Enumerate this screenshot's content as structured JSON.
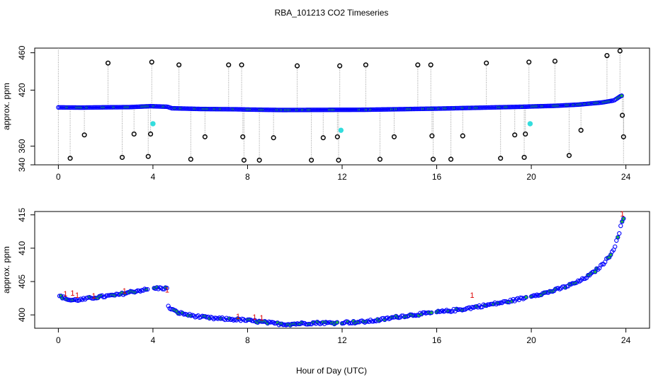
{
  "title": "RBA_101213  CO2 Timeseries",
  "xlabel": "Hour of Day (UTC)",
  "colors": {
    "point_outline": "#0000ff",
    "point_fill_green": "#22b14c",
    "outlier": "#000000",
    "flag_cyan": "#33dddd",
    "flag_red": "#dd0000",
    "drop_line": "#999999"
  },
  "chart_data": [
    {
      "type": "scatter",
      "name": "top-panel",
      "ylabel": "approx. ppm",
      "xlim": [
        -1.0,
        25.0
      ],
      "ylim": [
        340,
        465
      ],
      "xticks": [
        0,
        4,
        8,
        12,
        16,
        20,
        24
      ],
      "yticks": [
        340,
        360,
        420,
        460
      ],
      "ytick_labels": [
        "340",
        "360",
        "420",
        "460"
      ],
      "baseline": [
        [
          0,
          401.5
        ],
        [
          1,
          401.3
        ],
        [
          2,
          401.6
        ],
        [
          3,
          401.8
        ],
        [
          3.9,
          402.8
        ],
        [
          4.6,
          402.2
        ],
        [
          4.8,
          400.6
        ],
        [
          6,
          399.8
        ],
        [
          7.5,
          399.5
        ],
        [
          8,
          399.2
        ],
        [
          9.5,
          398.7
        ],
        [
          11.5,
          398.9
        ],
        [
          13,
          399.0
        ],
        [
          15.7,
          400.1
        ],
        [
          16,
          400.2
        ],
        [
          17.5,
          401.0
        ],
        [
          19.8,
          402.3
        ],
        [
          20,
          402.5
        ],
        [
          21,
          403.2
        ],
        [
          22,
          404.5
        ],
        [
          23,
          406.8
        ],
        [
          23.5,
          409.0
        ],
        [
          23.8,
          414.0
        ]
      ],
      "outliers": [
        [
          0.5,
          347
        ],
        [
          1.1,
          372
        ],
        [
          2.1,
          449
        ],
        [
          2.7,
          348
        ],
        [
          3.2,
          373
        ],
        [
          3.8,
          349
        ],
        [
          3.9,
          373
        ],
        [
          3.95,
          450
        ],
        [
          5.1,
          447
        ],
        [
          5.6,
          346
        ],
        [
          6.2,
          370
        ],
        [
          7.2,
          447
        ],
        [
          7.75,
          447
        ],
        [
          7.8,
          370
        ],
        [
          7.85,
          345
        ],
        [
          8.5,
          345
        ],
        [
          9.1,
          369
        ],
        [
          10.1,
          446
        ],
        [
          10.7,
          345
        ],
        [
          11.2,
          369
        ],
        [
          11.8,
          370
        ],
        [
          11.85,
          345
        ],
        [
          11.9,
          446
        ],
        [
          13.0,
          447
        ],
        [
          13.6,
          346
        ],
        [
          14.2,
          370
        ],
        [
          15.2,
          447
        ],
        [
          15.75,
          447
        ],
        [
          15.8,
          371
        ],
        [
          15.85,
          346
        ],
        [
          16.6,
          346
        ],
        [
          17.1,
          371
        ],
        [
          18.1,
          449
        ],
        [
          18.7,
          347
        ],
        [
          19.3,
          372
        ],
        [
          19.7,
          348
        ],
        [
          19.75,
          373
        ],
        [
          19.9,
          450
        ],
        [
          21.0,
          451
        ],
        [
          21.6,
          350
        ],
        [
          22.1,
          377
        ],
        [
          23.2,
          457
        ],
        [
          23.75,
          462
        ],
        [
          23.85,
          393
        ],
        [
          23.9,
          370
        ]
      ],
      "cyan_points": [
        [
          4.0,
          384
        ],
        [
          11.95,
          377
        ],
        [
          19.95,
          384
        ]
      ]
    },
    {
      "type": "scatter",
      "name": "bottom-panel",
      "ylabel": "approx. ppm",
      "xlim": [
        -1.0,
        25.0
      ],
      "ylim": [
        398.0,
        415.5
      ],
      "xticks": [
        0,
        4,
        8,
        12,
        16,
        20,
        24
      ],
      "yticks": [
        400,
        405,
        410,
        415
      ],
      "series": [
        {
          "x_start": 0.05,
          "x_end": 3.8,
          "points": [
            [
              0,
              402.9
            ],
            [
              0.5,
              402.2
            ],
            [
              1,
              402.3
            ],
            [
              1.5,
              402.6
            ],
            [
              2,
              402.8
            ],
            [
              2.5,
              403.0
            ],
            [
              3,
              403.4
            ],
            [
              3.5,
              403.7
            ],
            [
              3.8,
              403.8
            ]
          ]
        },
        {
          "x_start": 4.05,
          "x_end": 4.6,
          "points": [
            [
              4.05,
              404.0
            ],
            [
              4.6,
              404.0
            ]
          ]
        },
        {
          "x_start": 4.65,
          "x_end": 7.6,
          "points": [
            [
              4.65,
              401.2
            ],
            [
              5.0,
              400.4
            ],
            [
              5.5,
              400.0
            ],
            [
              6.0,
              399.7
            ],
            [
              6.5,
              399.5
            ],
            [
              7.0,
              399.4
            ],
            [
              7.6,
              399.3
            ]
          ]
        },
        {
          "x_start": 7.65,
          "x_end": 11.8,
          "points": [
            [
              7.65,
              399.3
            ],
            [
              8.2,
              399.1
            ],
            [
              8.7,
              398.9
            ],
            [
              9.2,
              398.7
            ],
            [
              9.7,
              398.6
            ],
            [
              10.2,
              398.7
            ],
            [
              10.8,
              398.8
            ],
            [
              11.3,
              398.8
            ],
            [
              11.8,
              398.8
            ]
          ]
        },
        {
          "x_start": 12.0,
          "x_end": 15.8,
          "points": [
            [
              12.0,
              398.9
            ],
            [
              12.5,
              398.9
            ],
            [
              13.0,
              399.0
            ],
            [
              13.5,
              399.2
            ],
            [
              14.0,
              399.5
            ],
            [
              14.5,
              399.8
            ],
            [
              15.0,
              400.0
            ],
            [
              15.5,
              400.2
            ],
            [
              15.8,
              400.3
            ]
          ]
        },
        {
          "x_start": 16.0,
          "x_end": 19.8,
          "points": [
            [
              16.0,
              400.4
            ],
            [
              16.5,
              400.6
            ],
            [
              17.0,
              400.8
            ],
            [
              17.5,
              401.1
            ],
            [
              18.0,
              401.4
            ],
            [
              18.5,
              401.7
            ],
            [
              19.0,
              402.0
            ],
            [
              19.5,
              402.4
            ],
            [
              19.8,
              402.6
            ]
          ]
        },
        {
          "x_start": 20.0,
          "x_end": 23.9,
          "points": [
            [
              20.0,
              402.9
            ],
            [
              20.5,
              403.2
            ],
            [
              21.0,
              403.7
            ],
            [
              21.5,
              404.3
            ],
            [
              22.0,
              405.0
            ],
            [
              22.5,
              406.0
            ],
            [
              23.0,
              407.5
            ],
            [
              23.3,
              408.8
            ],
            [
              23.5,
              410.0
            ],
            [
              23.7,
              412.0
            ],
            [
              23.8,
              413.5
            ],
            [
              23.9,
              414.5
            ]
          ]
        }
      ],
      "flag_label": "1",
      "flags": [
        [
          0.3,
          403.2
        ],
        [
          0.6,
          403.3
        ],
        [
          0.8,
          403.0
        ],
        [
          1.5,
          402.9
        ],
        [
          2.8,
          403.6
        ],
        [
          4.6,
          403.8
        ],
        [
          7.6,
          399.8
        ],
        [
          8.3,
          399.7
        ],
        [
          8.6,
          399.6
        ],
        [
          17.5,
          403.0
        ],
        [
          23.85,
          415.2
        ]
      ]
    }
  ]
}
